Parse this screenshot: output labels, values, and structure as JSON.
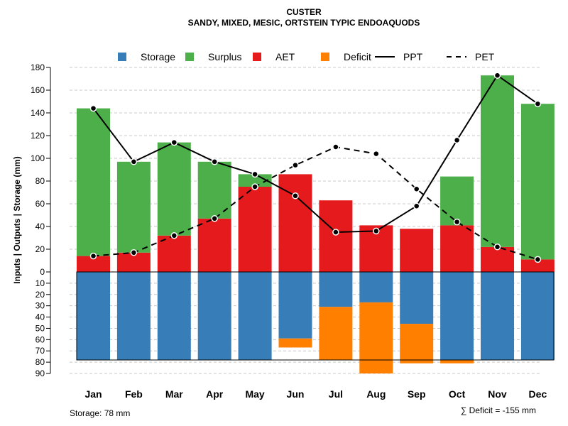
{
  "chart_data": {
    "type": "bar",
    "title": "CUSTER",
    "subtitle": "SANDY, MIXED, MESIC, ORTSTEIN TYPIC ENDOAQUODS",
    "ylabel": "Inputs | Outputs | Storage    (mm)",
    "ylim_top": [
      0,
      180
    ],
    "ylim_bottom": [
      0,
      90
    ],
    "yticks_top": [
      0,
      20,
      40,
      60,
      80,
      100,
      120,
      140,
      160,
      180
    ],
    "yticks_bottom": [
      10,
      20,
      30,
      40,
      50,
      60,
      70,
      80,
      90
    ],
    "categories": [
      "Jan",
      "Feb",
      "Mar",
      "Apr",
      "May",
      "Jun",
      "Jul",
      "Aug",
      "Sep",
      "Oct",
      "Nov",
      "Dec"
    ],
    "legend": [
      {
        "name": "Storage",
        "kind": "box",
        "color": "#377EB8"
      },
      {
        "name": "Surplus",
        "kind": "box",
        "color": "#4DAF4A"
      },
      {
        "name": "AET",
        "kind": "box",
        "color": "#E41A1C"
      },
      {
        "name": "Deficit",
        "kind": "box",
        "color": "#FF7F00"
      },
      {
        "name": "PPT",
        "kind": "solid",
        "color": "#000000"
      },
      {
        "name": "PET",
        "kind": "dashed",
        "color": "#000000"
      }
    ],
    "series": [
      {
        "name": "AET",
        "color": "#E41A1C",
        "values": [
          14,
          17,
          32,
          47,
          75,
          86,
          63,
          41,
          38,
          41,
          22,
          11
        ]
      },
      {
        "name": "Surplus",
        "color": "#4DAF4A",
        "values": [
          130,
          80,
          82,
          50,
          11,
          0,
          0,
          0,
          0,
          43,
          151,
          137
        ]
      },
      {
        "name": "Storage",
        "color": "#377EB8",
        "values": [
          78,
          78,
          78,
          78,
          78,
          59,
          31,
          27,
          46,
          78,
          78,
          78
        ]
      },
      {
        "name": "Deficit",
        "color": "#FF7F00",
        "values": [
          0,
          0,
          0,
          0,
          0,
          8,
          47,
          63,
          35,
          3,
          0,
          0
        ]
      },
      {
        "name": "PPT",
        "color": "#000000",
        "values": [
          144,
          97,
          114,
          97,
          86,
          67,
          35,
          36,
          58,
          116,
          173,
          148
        ]
      },
      {
        "name": "PET",
        "color": "#000000",
        "values": [
          14,
          17,
          32,
          47,
          75,
          94,
          110,
          104,
          73,
          44,
          22,
          11
        ]
      }
    ],
    "storage_label": "Storage: 78 mm",
    "deficit_label": "∑ Deficit = -155 mm"
  }
}
